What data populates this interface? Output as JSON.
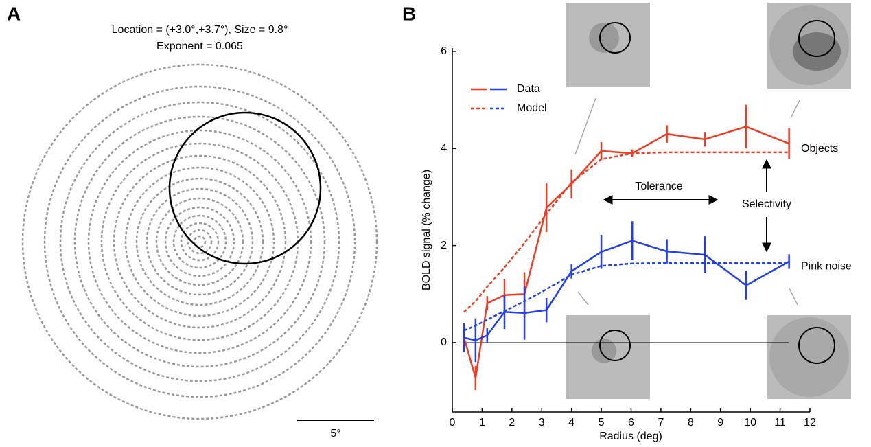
{
  "chart_data": [
    {
      "type": "diagram",
      "panel_label": "A",
      "title": "Location = (+3.0°,+3.7°), Size = 9.8°",
      "subtitle": "Exponent = 0.065",
      "scale_bar_label": "5°"
    },
    {
      "type": "line",
      "panel_label": "B",
      "x_label": "Radius (deg)",
      "y_label": "BOLD signal (% change)",
      "x": [
        0.39,
        0.78,
        1.17,
        1.75,
        2.42,
        3.16,
        4.0,
        5.0,
        6.04,
        7.2,
        8.47,
        9.86,
        11.3
      ],
      "series": [
        {
          "name": "Objects",
          "color": "#f03c23",
          "values": [
            0.11,
            -0.73,
            0.81,
            0.98,
            1.0,
            2.78,
            3.27,
            3.95,
            3.9,
            4.3,
            4.19,
            4.45,
            4.1
          ],
          "errors": [
            0.15,
            0.25,
            0.15,
            0.33,
            0.45,
            0.5,
            0.3,
            0.18,
            0.08,
            0.18,
            0.15,
            0.45,
            0.32
          ],
          "model": [
            0.63,
            0.85,
            1.15,
            1.55,
            2.05,
            2.65,
            3.3,
            3.78,
            3.9,
            3.92,
            3.92,
            3.92,
            3.92
          ]
        },
        {
          "name": "Pink noise",
          "color": "#1f3ff0",
          "values": [
            0.1,
            0.05,
            0.15,
            0.63,
            0.61,
            0.67,
            1.47,
            1.87,
            2.1,
            1.88,
            1.81,
            1.18,
            1.67
          ],
          "errors": [
            0.3,
            0.45,
            0.15,
            0.35,
            0.55,
            0.25,
            0.15,
            0.35,
            0.4,
            0.25,
            0.38,
            0.3,
            0.15
          ],
          "model": [
            0.25,
            0.35,
            0.47,
            0.65,
            0.85,
            1.1,
            1.4,
            1.58,
            1.63,
            1.64,
            1.64,
            1.64,
            1.64
          ]
        }
      ],
      "legend": [
        "Data",
        "Model"
      ],
      "annotations": [
        "Tolerance",
        "Selectivity"
      ],
      "xlim": [
        0,
        12
      ],
      "xticks": [
        0,
        1,
        2,
        3,
        4,
        5,
        6,
        7,
        8,
        9,
        10,
        11,
        12
      ],
      "ylim": [
        -1.43,
        6.07
      ],
      "yticks": [
        0,
        2,
        4,
        6
      ]
    }
  ]
}
